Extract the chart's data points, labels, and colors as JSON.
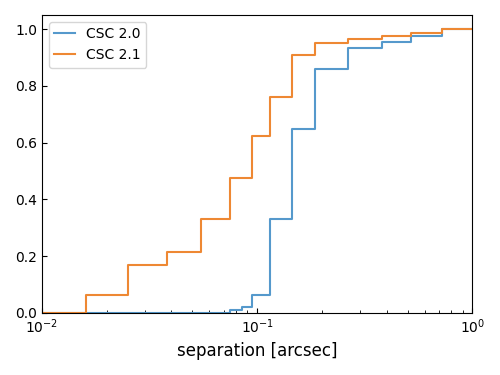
{
  "xlabel": "separation [arcsec]",
  "xlim": [
    0.01,
    1.0
  ],
  "ylim": [
    0.0,
    1.05
  ],
  "csc20_color": "#5599CC",
  "csc21_color": "#EE8833",
  "csc20_label": "CSC 2.0",
  "csc21_label": "CSC 2.1",
  "csc20_x": [
    0.01,
    0.075,
    0.075,
    0.085,
    0.085,
    0.095,
    0.095,
    0.115,
    0.115,
    0.145,
    0.145,
    0.185,
    0.185,
    0.265,
    0.265,
    0.38,
    0.38,
    0.52,
    0.52,
    0.72,
    0.72,
    1.0
  ],
  "csc20_y": [
    0.0,
    0.0,
    0.01,
    0.01,
    0.02,
    0.02,
    0.065,
    0.065,
    0.33,
    0.33,
    0.65,
    0.65,
    0.86,
    0.86,
    0.935,
    0.935,
    0.955,
    0.955,
    0.975,
    0.975,
    1.0,
    1.0
  ],
  "csc21_x": [
    0.01,
    0.016,
    0.016,
    0.025,
    0.025,
    0.038,
    0.038,
    0.055,
    0.055,
    0.075,
    0.075,
    0.095,
    0.095,
    0.115,
    0.115,
    0.145,
    0.145,
    0.185,
    0.185,
    0.265,
    0.265,
    0.38,
    0.38,
    0.52,
    0.52,
    0.72,
    0.72,
    1.0
  ],
  "csc21_y": [
    0.0,
    0.0,
    0.065,
    0.065,
    0.17,
    0.17,
    0.215,
    0.215,
    0.33,
    0.33,
    0.475,
    0.475,
    0.625,
    0.625,
    0.76,
    0.76,
    0.91,
    0.91,
    0.95,
    0.95,
    0.965,
    0.965,
    0.975,
    0.975,
    0.985,
    0.985,
    1.0,
    1.0
  ],
  "linewidth": 1.5
}
